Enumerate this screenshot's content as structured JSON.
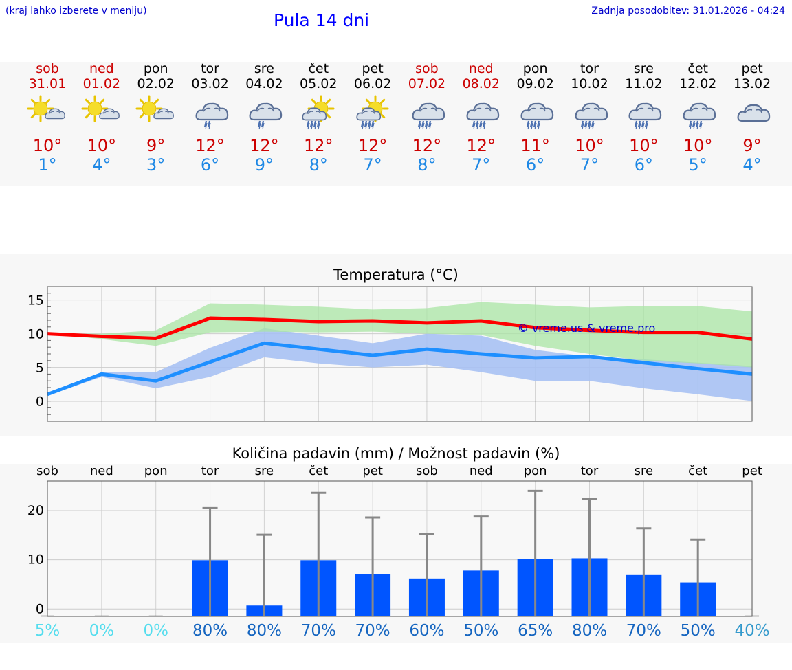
{
  "header": {
    "menu_hint": "(kraj lahko izberete v meniju)",
    "title": "Pula 14 dni",
    "last_update": "Zadnja posodobitev: 31.01.2026 - 04:24"
  },
  "forecast": [
    {
      "day": "sob",
      "date": "31.01",
      "weekend": true,
      "icon": "sun-cloud-icon",
      "tmax": "10°",
      "tmin": "1°"
    },
    {
      "day": "ned",
      "date": "01.02",
      "weekend": true,
      "icon": "sun-cloud-icon",
      "tmax": "10°",
      "tmin": "4°"
    },
    {
      "day": "pon",
      "date": "02.02",
      "weekend": false,
      "icon": "sun-cloud-icon",
      "tmax": "9°",
      "tmin": "3°"
    },
    {
      "day": "tor",
      "date": "03.02",
      "weekend": false,
      "icon": "rain-cloud-light-icon",
      "tmax": "12°",
      "tmin": "6°"
    },
    {
      "day": "sre",
      "date": "04.02",
      "weekend": false,
      "icon": "rain-cloud-light-icon",
      "tmax": "12°",
      "tmin": "9°"
    },
    {
      "day": "čet",
      "date": "05.02",
      "weekend": false,
      "icon": "sun-rain-cloud-icon",
      "tmax": "12°",
      "tmin": "8°"
    },
    {
      "day": "pet",
      "date": "06.02",
      "weekend": false,
      "icon": "sun-rain-cloud-icon",
      "tmax": "12°",
      "tmin": "7°"
    },
    {
      "day": "sob",
      "date": "07.02",
      "weekend": true,
      "icon": "rain-cloud-icon",
      "tmax": "12°",
      "tmin": "8°"
    },
    {
      "day": "ned",
      "date": "08.02",
      "weekend": true,
      "icon": "rain-cloud-icon",
      "tmax": "12°",
      "tmin": "7°"
    },
    {
      "day": "pon",
      "date": "09.02",
      "weekend": false,
      "icon": "rain-cloud-icon",
      "tmax": "11°",
      "tmin": "6°"
    },
    {
      "day": "tor",
      "date": "10.02",
      "weekend": false,
      "icon": "rain-cloud-icon",
      "tmax": "10°",
      "tmin": "7°"
    },
    {
      "day": "sre",
      "date": "11.02",
      "weekend": false,
      "icon": "rain-cloud-icon",
      "tmax": "10°",
      "tmin": "6°"
    },
    {
      "day": "čet",
      "date": "12.02",
      "weekend": false,
      "icon": "rain-cloud-icon",
      "tmax": "10°",
      "tmin": "5°"
    },
    {
      "day": "pet",
      "date": "13.02",
      "weekend": false,
      "icon": "cloud-icon",
      "tmax": "9°",
      "tmin": "4°"
    }
  ],
  "colors": {
    "max_line": "#ff0000",
    "min_line": "#1e8fff",
    "max_band": "#a9e5a4",
    "min_band": "#a7c1f3",
    "overlap_band": "#81c6a6",
    "bar": "#0055ff",
    "whisker": "#888888",
    "prob_high": "#1565c0",
    "prob_low": "#55ddee",
    "weekend": "#cc0000"
  },
  "chart_data": [
    {
      "type": "line",
      "title": "Temperatura (°C)",
      "watermark": "© vreme.us & vreme.pro",
      "ylim": [
        -3,
        17
      ],
      "yticks": [
        0,
        5,
        10,
        15
      ],
      "categories": [
        "31.01",
        "01.02",
        "02.02",
        "03.02",
        "04.02",
        "05.02",
        "06.02",
        "07.02",
        "08.02",
        "09.02",
        "10.02",
        "11.02",
        "12.02",
        "13.02"
      ],
      "series": [
        {
          "name": "max",
          "values": [
            10,
            9.6,
            9.3,
            12.3,
            12.1,
            11.8,
            11.9,
            11.6,
            11.9,
            10.9,
            10.5,
            10.2,
            10.2,
            9.2
          ],
          "band_low": [
            10,
            9.2,
            8.2,
            10.2,
            10.3,
            10.2,
            10.3,
            10.0,
            9.8,
            8.2,
            7.0,
            6.0,
            5.6,
            5.0
          ],
          "band_high": [
            10,
            10,
            10.5,
            14.5,
            14.3,
            14.0,
            13.6,
            13.8,
            14.7,
            14.3,
            13.9,
            14.1,
            14.1,
            13.3
          ]
        },
        {
          "name": "min",
          "values": [
            1,
            4,
            3,
            5.8,
            8.6,
            7.7,
            6.8,
            7.7,
            7.0,
            6.4,
            6.6,
            5.7,
            4.8,
            4.0
          ],
          "band_low": [
            0.8,
            3.6,
            1.9,
            3.6,
            6.5,
            5.6,
            5.0,
            5.4,
            4.3,
            3.0,
            3.0,
            1.9,
            1.0,
            0.0
          ],
          "band_high": [
            1.2,
            4.3,
            4.3,
            7.9,
            10.8,
            9.7,
            8.6,
            10.0,
            9.7,
            7.6,
            6.6,
            6.2,
            5.7,
            5.2
          ]
        }
      ]
    },
    {
      "type": "bar",
      "title": "Količina padavin (mm) / Možnost padavin (%)",
      "ylim": [
        -1.5,
        26
      ],
      "yticks": [
        0,
        10,
        20
      ],
      "categories": [
        "sob",
        "ned",
        "pon",
        "tor",
        "sre",
        "čet",
        "pet",
        "sob",
        "ned",
        "pon",
        "tor",
        "sre",
        "čet",
        "pet"
      ],
      "values": [
        0,
        0,
        0,
        9.9,
        0.7,
        9.9,
        7.1,
        6.2,
        7.8,
        10.1,
        10.3,
        6.9,
        5.4,
        0
      ],
      "error_high": [
        0,
        0,
        0,
        20.5,
        15.1,
        23.6,
        18.6,
        15.3,
        18.8,
        24,
        22.3,
        16.4,
        14.1,
        0
      ],
      "probabilities": [
        "5%",
        "0%",
        "0%",
        "80%",
        "80%",
        "70%",
        "70%",
        "60%",
        "50%",
        "65%",
        "80%",
        "70%",
        "50%",
        "40%"
      ]
    }
  ]
}
